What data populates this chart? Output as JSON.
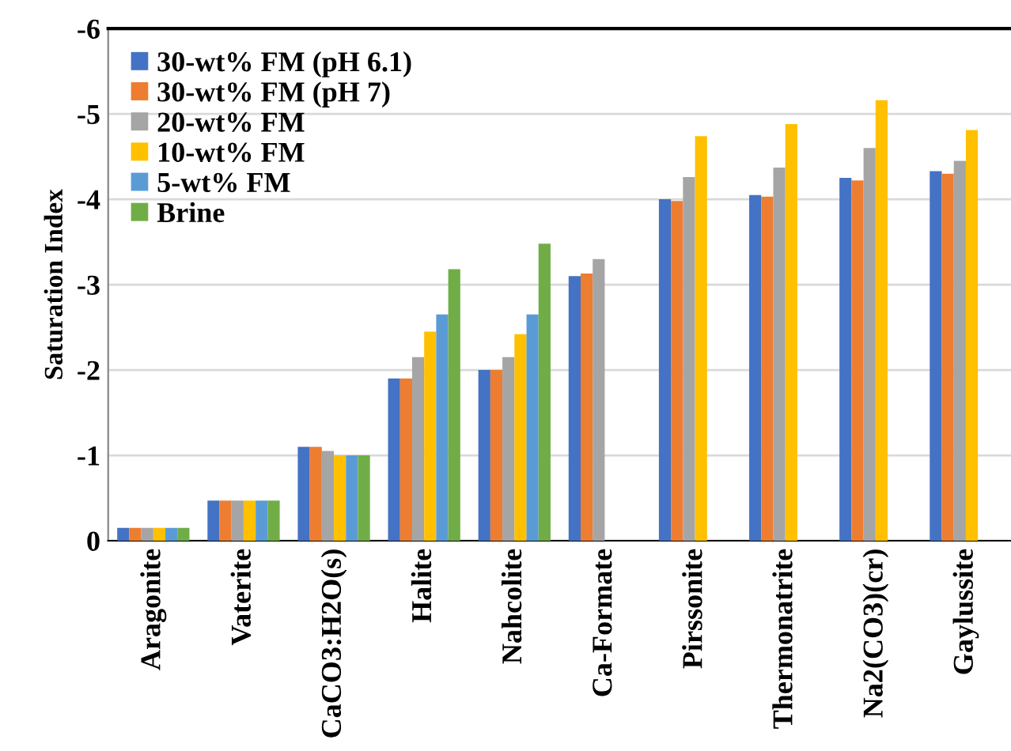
{
  "chart_data": {
    "type": "bar",
    "ylabel": "Saturation Index",
    "categories": [
      "Aragonite",
      "Vaterite",
      "CaCO3:H2O(s)",
      "Halite",
      "Nahcolite",
      "Ca-Formate",
      "Pirssonite",
      "Thermonatrite",
      "Na2(CO3)(cr)",
      "Gaylussite"
    ],
    "series": [
      {
        "name": "30-wt% FM (pH 6.1)",
        "color": "#4472c4",
        "values": [
          -0.15,
          -0.47,
          -1.1,
          -1.9,
          -2.0,
          -3.1,
          -4.0,
          -4.05,
          -4.25,
          -4.33
        ]
      },
      {
        "name": "30-wt% FM (pH 7)",
        "color": "#ed7d31",
        "values": [
          -0.15,
          -0.47,
          -1.1,
          -1.9,
          -2.0,
          -3.13,
          -3.98,
          -4.03,
          -4.22,
          -4.3
        ]
      },
      {
        "name": "20-wt% FM",
        "color": "#a5a5a5",
        "values": [
          -0.15,
          -0.47,
          -1.05,
          -2.15,
          -2.15,
          -3.3,
          -4.26,
          -4.37,
          -4.6,
          -4.45
        ]
      },
      {
        "name": "10-wt% FM",
        "color": "#ffc000",
        "values": [
          -0.15,
          -0.47,
          -1.0,
          -2.45,
          -2.42,
          null,
          -4.74,
          -4.88,
          -5.16,
          -4.81
        ]
      },
      {
        "name": "5-wt% FM",
        "color": "#5b9bd5",
        "values": [
          -0.15,
          -0.47,
          -1.0,
          -2.65,
          -2.65,
          null,
          null,
          null,
          null,
          null
        ]
      },
      {
        "name": "Brine",
        "color": "#70ad47",
        "values": [
          -0.15,
          -0.47,
          -1.0,
          -3.18,
          -3.48,
          null,
          null,
          null,
          null,
          null
        ]
      }
    ],
    "ylim": [
      0,
      -6
    ],
    "yticks": [
      0,
      -1,
      -2,
      -3,
      -4,
      -5,
      -6
    ],
    "grid": "y",
    "legend": "top left"
  }
}
